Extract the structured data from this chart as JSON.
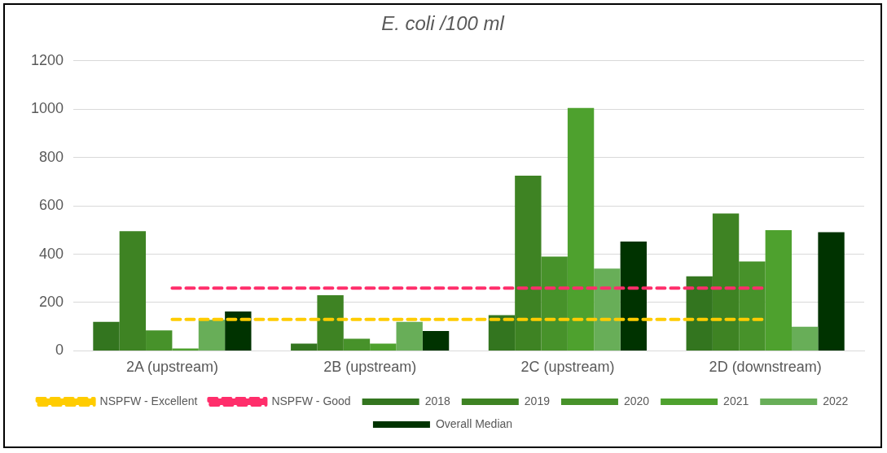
{
  "chart_data": {
    "type": "bar",
    "title": "E. coli /100 ml",
    "categories": [
      "2A (upstream)",
      "2B (upstream)",
      "2C (upstream)",
      "2D (downstream)"
    ],
    "ylim": [
      0,
      1200
    ],
    "yticks": [
      0,
      200,
      400,
      600,
      800,
      1000,
      1200
    ],
    "grid": "y",
    "legend": "bottom",
    "series": [
      {
        "name": "2018",
        "color": "#33751f",
        "values": [
          120,
          30,
          148,
          308
        ]
      },
      {
        "name": "2019",
        "color": "#3e8323",
        "values": [
          495,
          230,
          725,
          568
        ]
      },
      {
        "name": "2020",
        "color": "#47922a",
        "values": [
          85,
          50,
          390,
          370
        ]
      },
      {
        "name": "2021",
        "color": "#4ea12e",
        "values": [
          10,
          30,
          1005,
          499
        ]
      },
      {
        "name": "2022",
        "color": "#68ae58",
        "values": [
          128,
          120,
          340,
          100
        ]
      },
      {
        "name": "Overall Median",
        "color": "#003300",
        "values": [
          163,
          82,
          452,
          491
        ]
      },
      {
        "name": "NSPFW - Excellent",
        "type": "line",
        "line_style": "dashed",
        "marker": "none",
        "color": "#ffcc00",
        "values": [
          130,
          130,
          130,
          130
        ]
      },
      {
        "name": "NSPFW - Good",
        "type": "line",
        "line_style": "dashed",
        "marker": "none",
        "color": "#ff2e6b",
        "values": [
          260,
          260,
          260,
          260
        ]
      }
    ]
  }
}
